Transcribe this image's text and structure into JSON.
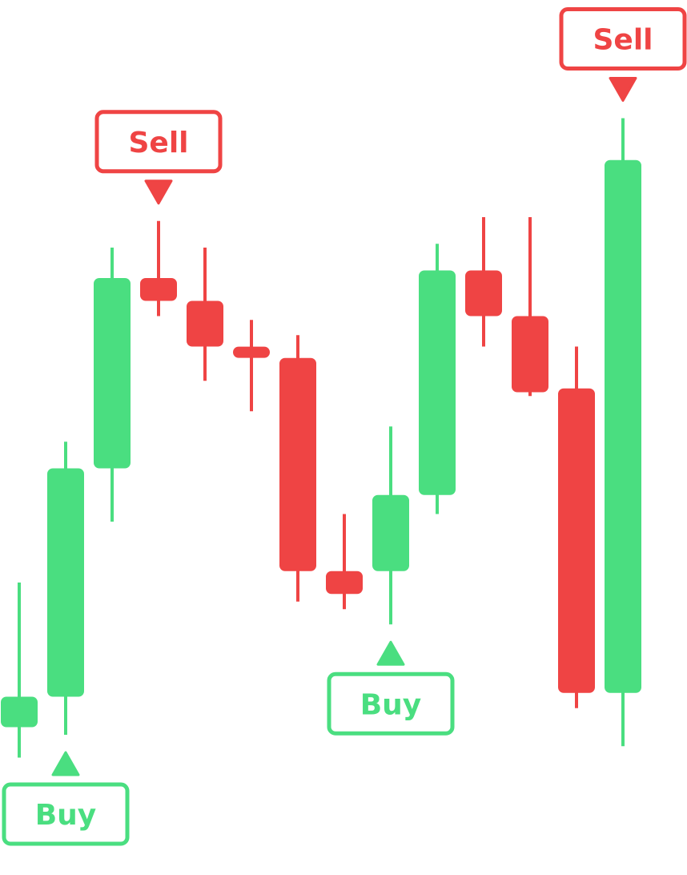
{
  "colors": {
    "up": "#4ade80",
    "down": "#ef4444",
    "background": "#ffffff"
  },
  "chart_data": {
    "type": "candlestick",
    "title": "",
    "xlabel": "",
    "ylabel": "",
    "grid": false,
    "legend": "none",
    "ylim": [
      0,
      1000
    ],
    "candles": [
      {
        "open": 150,
        "close": 190,
        "high": 340,
        "low": 110,
        "color": "up"
      },
      {
        "open": 190,
        "close": 490,
        "high": 525,
        "low": 140,
        "color": "up"
      },
      {
        "open": 490,
        "close": 740,
        "high": 780,
        "low": 420,
        "color": "up"
      },
      {
        "open": 740,
        "close": 710,
        "high": 815,
        "low": 690,
        "color": "down"
      },
      {
        "open": 710,
        "close": 650,
        "high": 780,
        "low": 605,
        "color": "down"
      },
      {
        "open": 645,
        "close": 640,
        "high": 685,
        "low": 565,
        "color": "down"
      },
      {
        "open": 635,
        "close": 355,
        "high": 665,
        "low": 315,
        "color": "down"
      },
      {
        "open": 355,
        "close": 325,
        "high": 430,
        "low": 305,
        "color": "down"
      },
      {
        "open": 355,
        "close": 455,
        "high": 545,
        "low": 285,
        "color": "up"
      },
      {
        "open": 455,
        "close": 750,
        "high": 785,
        "low": 430,
        "color": "up"
      },
      {
        "open": 750,
        "close": 690,
        "high": 820,
        "low": 650,
        "color": "down"
      },
      {
        "open": 690,
        "close": 590,
        "high": 820,
        "low": 585,
        "color": "down"
      },
      {
        "open": 595,
        "close": 195,
        "high": 650,
        "low": 175,
        "color": "down"
      },
      {
        "open": 195,
        "close": 895,
        "high": 950,
        "low": 125,
        "color": "up"
      }
    ],
    "signals": [
      {
        "candle": 1,
        "type": "buy",
        "label": "Buy"
      },
      {
        "candle": 3,
        "type": "sell",
        "label": "Sell"
      },
      {
        "candle": 8,
        "type": "buy",
        "label": "Buy"
      },
      {
        "candle": 13,
        "type": "sell",
        "label": "Sell"
      }
    ]
  }
}
